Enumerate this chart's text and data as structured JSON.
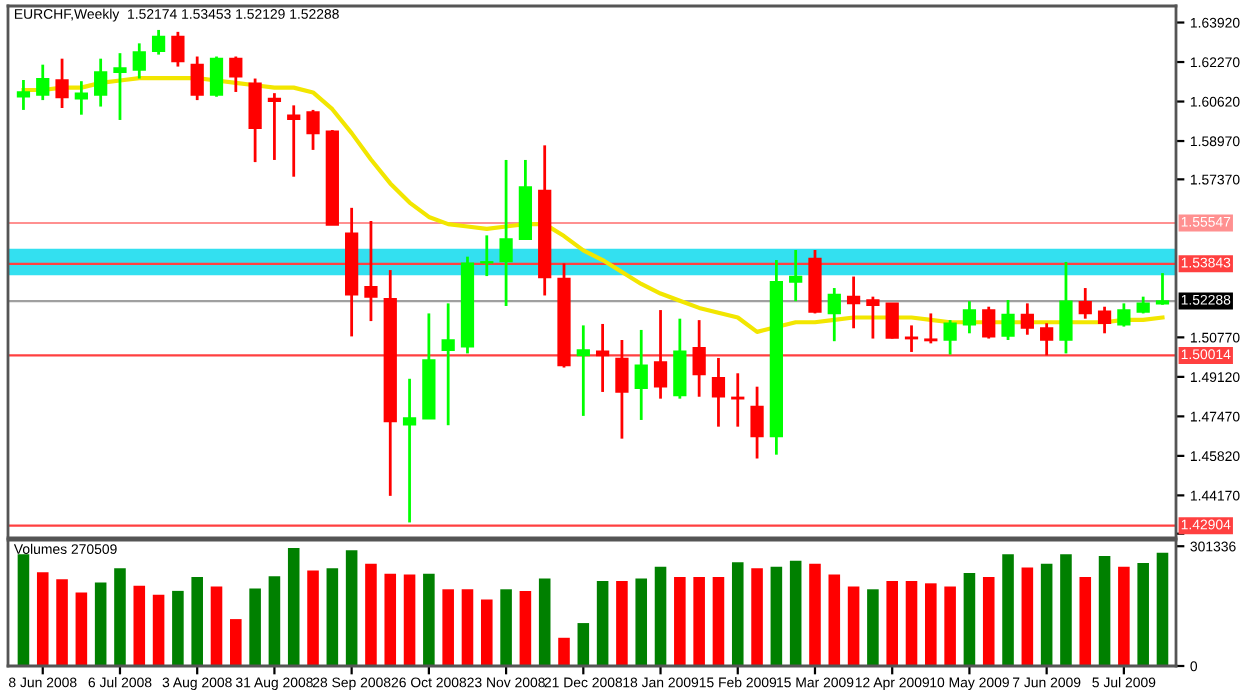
{
  "chart_data": [
    {
      "type": "candlestick",
      "title": "EURCHF,Weekly  1.52174 1.53453 1.52129 1.52288",
      "ohlc": [
        [
          1.6082,
          1.6152,
          1.6027,
          1.6101
        ],
        [
          1.609,
          1.6216,
          1.6068,
          1.6157
        ],
        [
          1.6152,
          1.6241,
          1.6035,
          1.6079
        ],
        [
          1.6074,
          1.6147,
          1.6007,
          1.6096
        ],
        [
          1.609,
          1.6241,
          1.6041,
          1.6185
        ],
        [
          1.6185,
          1.6264,
          1.5985,
          1.6202
        ],
        [
          1.6194,
          1.6305,
          1.6158,
          1.6269
        ],
        [
          1.6272,
          1.6361,
          1.6258,
          1.6333
        ],
        [
          1.6333,
          1.6353,
          1.6208,
          1.623
        ],
        [
          1.6216,
          1.625,
          1.6068,
          1.609
        ],
        [
          1.609,
          1.625,
          1.6082,
          1.6241
        ],
        [
          1.6241,
          1.625,
          1.6102,
          1.6166
        ],
        [
          1.6138,
          1.6158,
          1.5809,
          1.5951
        ],
        [
          1.6074,
          1.6097,
          1.5818,
          1.6063
        ],
        [
          1.6004,
          1.6046,
          1.5748,
          1.5988
        ],
        [
          1.6018,
          1.6027,
          1.586,
          1.5929
        ],
        [
          1.5937,
          1.5943,
          1.5547,
          1.5547
        ],
        [
          1.5512,
          1.5618,
          1.5081,
          1.5255
        ],
        [
          1.5288,
          1.5563,
          1.5145,
          1.5246
        ],
        [
          1.5238,
          1.5358,
          1.4415,
          1.4726
        ],
        [
          1.4712,
          1.4904,
          1.4304,
          1.474
        ],
        [
          1.4737,
          1.5177,
          1.4737,
          1.4982
        ],
        [
          1.5024,
          1.5219,
          1.471,
          1.5066
        ],
        [
          1.5038,
          1.5414,
          1.501,
          1.5386
        ],
        [
          1.5389,
          1.5503,
          1.5333,
          1.5392
        ],
        [
          1.5394,
          1.5818,
          1.5208,
          1.5487
        ],
        [
          1.5487,
          1.5818,
          1.5487,
          1.5705
        ],
        [
          1.569,
          1.5879,
          1.5252,
          1.5327
        ],
        [
          1.5322,
          1.5386,
          1.4951,
          1.496
        ],
        [
          1.5002,
          1.5127,
          1.4749,
          1.5024
        ],
        [
          1.5019,
          1.5133,
          1.4849,
          1.5002
        ],
        [
          1.4988,
          1.5066,
          1.4654,
          1.4849
        ],
        [
          1.4865,
          1.5108,
          1.4732,
          1.496
        ],
        [
          1.4974,
          1.5191,
          1.4821,
          1.4871
        ],
        [
          1.4835,
          1.5155,
          1.4821,
          1.5019
        ],
        [
          1.5033,
          1.5149,
          1.4829,
          1.4922
        ],
        [
          1.4908,
          1.4991,
          1.4704,
          1.4829
        ],
        [
          1.4826,
          1.4927,
          1.4704,
          1.4821
        ],
        [
          1.4788,
          1.4871,
          1.4571,
          1.4663
        ],
        [
          1.4663,
          1.54,
          1.4587,
          1.5309
        ],
        [
          1.5309,
          1.5442,
          1.5228,
          1.5331
        ],
        [
          1.5406,
          1.5442,
          1.5177,
          1.5183
        ],
        [
          1.5177,
          1.5283,
          1.5061,
          1.5256
        ],
        [
          1.5247,
          1.5331,
          1.5115,
          1.5219
        ],
        [
          1.5233,
          1.5247,
          1.5072,
          1.5211
        ],
        [
          1.5219,
          1.5219,
          1.5072,
          1.5075
        ],
        [
          1.5077,
          1.5127,
          1.5016,
          1.5072
        ],
        [
          1.5069,
          1.5177,
          1.5052,
          1.5064
        ],
        [
          1.5066,
          1.5149,
          1.5005,
          1.5136
        ],
        [
          1.513,
          1.5228,
          1.5094,
          1.5191
        ],
        [
          1.5191,
          1.5205,
          1.5072,
          1.508
        ],
        [
          1.5083,
          1.5233,
          1.5066,
          1.5172
        ],
        [
          1.5172,
          1.5219,
          1.5088,
          1.5116
        ],
        [
          1.5116,
          1.5136,
          1.5002,
          1.5066
        ],
        [
          1.5066,
          1.5392,
          1.501,
          1.5228
        ],
        [
          1.5225,
          1.5283,
          1.5155,
          1.5177
        ],
        [
          1.5186,
          1.5205,
          1.5094,
          1.5136
        ],
        [
          1.513,
          1.5219,
          1.5122,
          1.5191
        ],
        [
          1.5183,
          1.5247,
          1.5177,
          1.5219
        ],
        [
          1.52174,
          1.53453,
          1.52129,
          1.52288
        ]
      ],
      "colors": [
        "#00ff00",
        "#00ff00",
        "#ff0000",
        "#00ff00",
        "#00ff00",
        "#00ff00",
        "#00ff00",
        "#00ff00",
        "#ff0000",
        "#ff0000",
        "#00ff00",
        "#ff0000",
        "#ff0000",
        "#ff0000",
        "#ff0000",
        "#ff0000",
        "#ff0000",
        "#ff0000",
        "#ff0000",
        "#ff0000",
        "#00ff00",
        "#00ff00",
        "#00ff00",
        "#00ff00",
        "#00ff00",
        "#00ff00",
        "#00ff00",
        "#ff0000",
        "#ff0000",
        "#00ff00",
        "#ff0000",
        "#ff0000",
        "#00ff00",
        "#ff0000",
        "#00ff00",
        "#ff0000",
        "#ff0000",
        "#ff0000",
        "#ff0000",
        "#00ff00",
        "#00ff00",
        "#ff0000",
        "#00ff00",
        "#ff0000",
        "#ff0000",
        "#ff0000",
        "#ff0000",
        "#ff0000",
        "#00ff00",
        "#00ff00",
        "#ff0000",
        "#00ff00",
        "#ff0000",
        "#ff0000",
        "#00ff00",
        "#ff0000",
        "#ff0000",
        "#00ff00",
        "#00ff00",
        "#00ff00"
      ],
      "series": [
        {
          "type": "line",
          "color": "#f2e600",
          "values": [
            1.611,
            1.611,
            1.612,
            1.612,
            1.614,
            1.615,
            1.616,
            1.616,
            1.616,
            1.616,
            1.615,
            1.614,
            1.613,
            1.612,
            1.612,
            1.61,
            1.603,
            1.593,
            1.582,
            1.572,
            1.564,
            1.558,
            1.555,
            1.554,
            1.553,
            1.554,
            1.555,
            1.555,
            1.55,
            1.544,
            1.54,
            1.535,
            1.53,
            1.526,
            1.523,
            1.52,
            1.518,
            1.516,
            1.51,
            1.512,
            1.514,
            1.514,
            1.515,
            1.516,
            1.516,
            1.516,
            1.516,
            1.515,
            1.514,
            1.514,
            1.514,
            1.514,
            1.514,
            1.514,
            1.514,
            1.514,
            1.514,
            1.515,
            1.515,
            1.516
          ]
        }
      ],
      "ylim": [
        1.4239,
        1.6461
      ],
      "yticks": [
        {
          "value": 1.4257,
          "label": null
        },
        {
          "value": 1.4417,
          "label": "1.44170"
        },
        {
          "value": 1.4582,
          "label": "1.45820"
        },
        {
          "value": 1.4747,
          "label": "1.47470"
        },
        {
          "value": 1.4912,
          "label": "1.49120"
        },
        {
          "value": 1.5077,
          "label": "1.50770"
        },
        {
          "value": 1.5737,
          "label": "1.57370"
        },
        {
          "value": 1.5897,
          "label": "1.58970"
        },
        {
          "value": 1.6062,
          "label": "1.60620"
        },
        {
          "value": 1.6227,
          "label": "1.62270"
        },
        {
          "value": 1.6392,
          "label": "1.63920"
        }
      ],
      "ref_lines": [
        {
          "axis": "y",
          "value": 1.55547,
          "label": "1.55547",
          "color": "#ff9090"
        },
        {
          "axis": "y",
          "value": 1.53843,
          "label": "1.53843",
          "color": "#ff4040"
        },
        {
          "axis": "y",
          "value": 1.52288,
          "label": "1.52288",
          "color": "#a0a0a0"
        },
        {
          "axis": "y",
          "value": 1.50014,
          "label": "1.50014",
          "color": "#ff4040"
        },
        {
          "axis": "y",
          "value": 1.42904,
          "label": "1.42904",
          "color": "#ff4040"
        }
      ],
      "bands": [
        {
          "axis": "y",
          "from": 1.5336,
          "to": 1.5447,
          "color": "#33e0f0"
        }
      ],
      "tick_labels": "y"
    },
    {
      "type": "bar",
      "categories": [
        null,
        "8 Jun 2008",
        null,
        null,
        null,
        "6 Jul 2008",
        null,
        null,
        null,
        "3 Aug 2008",
        null,
        null,
        null,
        "31 Aug 2008",
        null,
        null,
        null,
        "28 Sep 2008",
        null,
        null,
        null,
        "26 Oct 2008",
        null,
        null,
        null,
        "23 Nov 2008",
        null,
        null,
        null,
        "21 Dec 2008",
        null,
        null,
        null,
        "18 Jan 2009",
        null,
        null,
        null,
        "15 Feb 2009",
        null,
        null,
        null,
        "15 Mar 2009",
        null,
        null,
        null,
        "12 Apr 2009",
        null,
        null,
        null,
        "10 May 2009",
        null,
        null,
        null,
        "7 Jun 2009",
        null,
        null,
        null,
        "5 Jul 2009",
        null,
        null
      ],
      "values": [
        281000,
        236000,
        218000,
        185000,
        210000,
        246000,
        202000,
        179000,
        189000,
        224000,
        200000,
        118000,
        195000,
        226000,
        297000,
        240000,
        246000,
        291000,
        257000,
        232000,
        230000,
        232000,
        193000,
        193000,
        167000,
        193000,
        189000,
        220000,
        71000,
        108000,
        214000,
        214000,
        220000,
        250000,
        224000,
        224000,
        224000,
        261000,
        246000,
        250000,
        265000,
        257000,
        230000,
        200000,
        193000,
        214000,
        214000,
        208000,
        200000,
        234000,
        224000,
        281000,
        248000,
        257000,
        281000,
        224000,
        277000,
        250000,
        259000,
        285000
      ],
      "colors": [
        "#008000",
        "#ff0000",
        "#ff0000",
        "#ff0000",
        "#008000",
        "#008000",
        "#ff0000",
        "#ff0000",
        "#008000",
        "#008000",
        "#ff0000",
        "#ff0000",
        "#008000",
        "#008000",
        "#008000",
        "#ff0000",
        "#008000",
        "#008000",
        "#ff0000",
        "#ff0000",
        "#ff0000",
        "#008000",
        "#ff0000",
        "#ff0000",
        "#ff0000",
        "#008000",
        "#ff0000",
        "#008000",
        "#ff0000",
        "#008000",
        "#008000",
        "#ff0000",
        "#008000",
        "#008000",
        "#ff0000",
        "#ff0000",
        "#ff0000",
        "#008000",
        "#ff0000",
        "#008000",
        "#008000",
        "#ff0000",
        "#ff0000",
        "#ff0000",
        "#008000",
        "#ff0000",
        "#ff0000",
        "#ff0000",
        "#ff0000",
        "#008000",
        "#ff0000",
        "#008000",
        "#ff0000",
        "#008000",
        "#008000",
        "#ff0000",
        "#008000",
        "#ff0000",
        "#008000",
        "#008000"
      ],
      "ylim": [
        0,
        317000
      ],
      "yticks": [
        0,
        301336
      ],
      "annotations": [
        "Volumes 270509"
      ]
    }
  ]
}
